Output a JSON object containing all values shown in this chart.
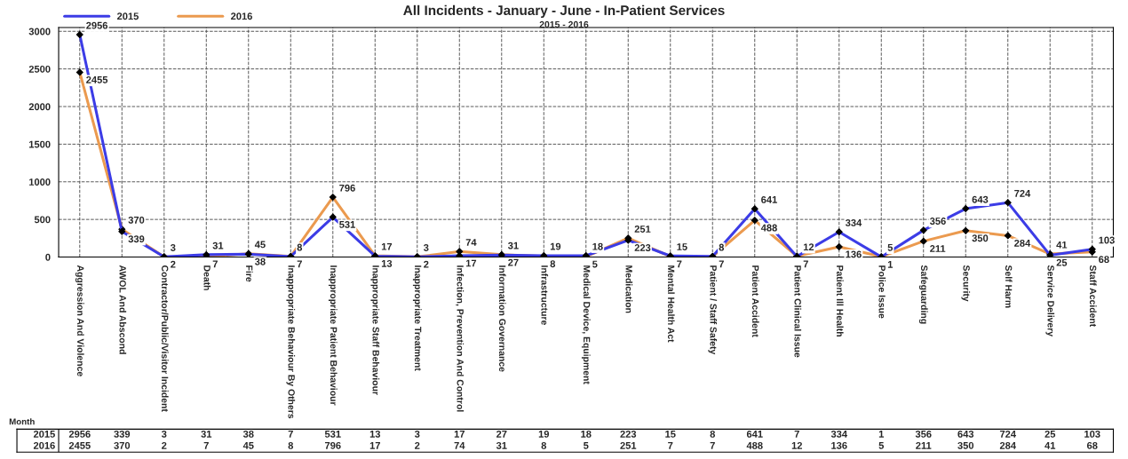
{
  "chart_data": {
    "type": "line",
    "title": "All Incidents - January - June - In-Patient Services",
    "subtitle": "2015 - 2016",
    "categories": [
      "Aggression And Violence",
      "AWOL And Abscond",
      "Contractor/Public/Visitor Incident",
      "Death",
      "Fire",
      "Inappropriate Behaviour By Others",
      "Inappropriate Patient Behaviour",
      "Inappropriate Staff Behaviour",
      "Inappropriate Treatment",
      "Infection, Prevention And Control",
      "Information Governance",
      "Infrastructure",
      "Medical Device, Equipment",
      "Medication",
      "Mental Health Act",
      "Patient / Staff Safety",
      "Patient Accident",
      "Patient Clinical Issue",
      "Patient Ill Health",
      "Police Issue",
      "Safeguarding",
      "Security",
      "Self Harm",
      "Service Delivery",
      "Staff Accident"
    ],
    "series": [
      {
        "name": "2015",
        "color": "#3c3ce6",
        "values": [
          2956,
          339,
          3,
          31,
          38,
          7,
          531,
          13,
          3,
          17,
          27,
          19,
          18,
          223,
          15,
          8,
          641,
          7,
          334,
          1,
          356,
          643,
          724,
          25,
          103
        ]
      },
      {
        "name": "2016",
        "color": "#eb9a4f",
        "values": [
          2455,
          370,
          2,
          7,
          45,
          8,
          796,
          17,
          2,
          74,
          31,
          8,
          5,
          251,
          7,
          7,
          488,
          12,
          136,
          5,
          211,
          350,
          284,
          41,
          68
        ]
      }
    ],
    "ylim": [
      0,
      3050
    ],
    "yticks": [
      0,
      500,
      1000,
      1500,
      2000,
      2500,
      3000
    ],
    "grid": true,
    "legend": "top left",
    "marker": "diamond",
    "line_style": "solid",
    "data_labels": true,
    "annotations": [
      "Month",
      {
        "text": "2956",
        "x": "Aggression And Violence",
        "y": 2956
      },
      {
        "text": "339",
        "x": "AWOL And Abscond",
        "y": 339
      },
      {
        "text": "3",
        "x": "Contractor/Public/Visitor Incident",
        "y": 3
      },
      {
        "text": "31",
        "x": "Death",
        "y": 31
      },
      {
        "text": "38",
        "x": "Fire",
        "y": 38
      },
      {
        "text": "7",
        "x": "Inappropriate Behaviour By Others",
        "y": 7
      },
      {
        "text": "531",
        "x": "Inappropriate Patient Behaviour",
        "y": 531
      },
      {
        "text": "13",
        "x": "Inappropriate Staff Behaviour",
        "y": 13
      },
      {
        "text": "3",
        "x": "Inappropriate Treatment",
        "y": 3
      },
      {
        "text": "17",
        "x": "Infection, Prevention And Control",
        "y": 17
      },
      {
        "text": "27",
        "x": "Information Governance",
        "y": 27
      },
      {
        "text": "19",
        "x": "Infrastructure",
        "y": 19
      },
      {
        "text": "18",
        "x": "Medical Device, Equipment",
        "y": 18
      },
      {
        "text": "223",
        "x": "Medication",
        "y": 223
      },
      {
        "text": "15",
        "x": "Mental Health Act",
        "y": 15
      },
      {
        "text": "8",
        "x": "Patient / Staff Safety",
        "y": 8
      },
      {
        "text": "641",
        "x": "Patient Accident",
        "y": 641
      },
      {
        "text": "7",
        "x": "Patient Clinical Issue",
        "y": 7
      },
      {
        "text": "334",
        "x": "Patient Ill Health",
        "y": 334
      },
      {
        "text": "1",
        "x": "Police Issue",
        "y": 1
      },
      {
        "text": "356",
        "x": "Safeguarding",
        "y": 356
      },
      {
        "text": "643",
        "x": "Security",
        "y": 643
      },
      {
        "text": "724",
        "x": "Self Harm",
        "y": 724
      },
      {
        "text": "25",
        "x": "Service Delivery",
        "y": 25
      },
      {
        "text": "103",
        "x": "Staff Accident",
        "y": 103
      },
      {
        "text": "2455",
        "x": "Aggression And Violence",
        "y": 2455
      },
      {
        "text": "370",
        "x": "AWOL And Abscond",
        "y": 370
      },
      {
        "text": "2",
        "x": "Contractor/Public/Visitor Incident",
        "y": 2
      },
      {
        "text": "7",
        "x": "Death",
        "y": 7
      },
      {
        "text": "45",
        "x": "Fire",
        "y": 45
      },
      {
        "text": "8",
        "x": "Inappropriate Behaviour By Others",
        "y": 8
      },
      {
        "text": "796",
        "x": "Inappropriate Patient Behaviour",
        "y": 796
      },
      {
        "text": "17",
        "x": "Inappropriate Staff Behaviour",
        "y": 17
      },
      {
        "text": "2",
        "x": "Inappropriate Treatment",
        "y": 2
      },
      {
        "text": "74",
        "x": "Infection, Prevention And Control",
        "y": 74
      },
      {
        "text": "31",
        "x": "Information Governance",
        "y": 31
      },
      {
        "text": "8",
        "x": "Infrastructure",
        "y": 8
      },
      {
        "text": "5",
        "x": "Medical Device, Equipment",
        "y": 5
      },
      {
        "text": "251",
        "x": "Medication",
        "y": 251
      },
      {
        "text": "7",
        "x": "Mental Health Act",
        "y": 7
      },
      {
        "text": "7",
        "x": "Patient / Staff Safety",
        "y": 7
      },
      {
        "text": "488",
        "x": "Patient Accident",
        "y": 488
      },
      {
        "text": "12",
        "x": "Patient Clinical Issue",
        "y": 12
      },
      {
        "text": "136",
        "x": "Patient Ill Health",
        "y": 136
      },
      {
        "text": "5",
        "x": "Police Issue",
        "y": 5
      },
      {
        "text": "211",
        "x": "Safeguarding",
        "y": 211
      },
      {
        "text": "350",
        "x": "Security",
        "y": 350
      },
      {
        "text": "284",
        "x": "Self Harm",
        "y": 284
      },
      {
        "text": "41",
        "x": "Service Delivery",
        "y": 41
      },
      {
        "text": "68",
        "x": "Staff Accident",
        "y": 68
      }
    ]
  }
}
